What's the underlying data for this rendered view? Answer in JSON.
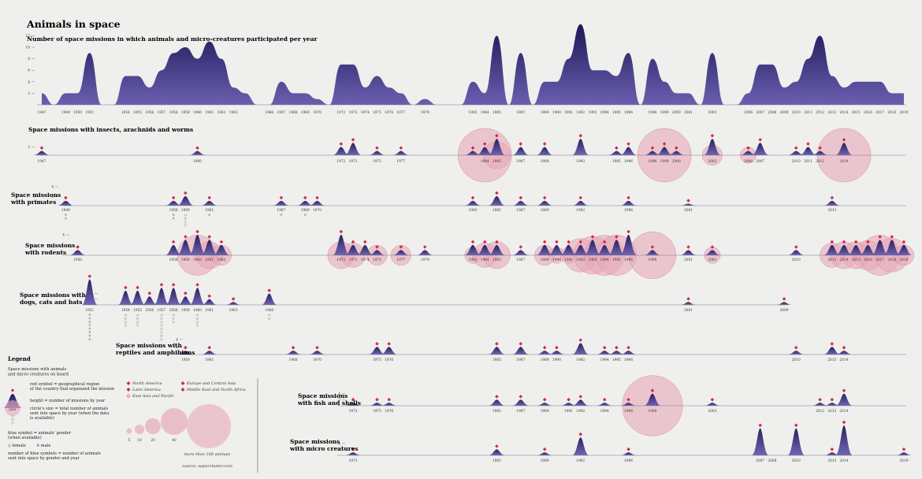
{
  "title": "Animals in space",
  "subtitle": "Number of space missions in which animals and micro-creatures participated per year",
  "colors": {
    "area": "#2b2466",
    "area_light": "#4a3f8e",
    "bubble": "#e8a9b8",
    "marker": "#d6264b",
    "gender": "#6d68a8",
    "background": "#efefed"
  },
  "chart_data": [
    {
      "type": "area",
      "name": "main",
      "title": "Number of space missions in which animals and micro-creatures participated per year",
      "y_ticks": [
        "2",
        "4",
        "6",
        "8",
        "10",
        "12"
      ],
      "ylim": [
        0,
        13
      ],
      "x": [
        1947,
        1948,
        1949,
        1950,
        1951,
        1952,
        1953,
        1954,
        1955,
        1956,
        1957,
        1958,
        1959,
        1960,
        1961,
        1962,
        1963,
        1964,
        1965,
        1966,
        1967,
        1968,
        1969,
        1970,
        1971,
        1972,
        1973,
        1974,
        1975,
        1976,
        1977,
        1978,
        1979,
        1980,
        1981,
        1982,
        1983,
        1984,
        1985,
        1986,
        1987,
        1988,
        1989,
        1990,
        1991,
        1992,
        1993,
        1994,
        1995,
        1996,
        1997,
        1998,
        1999,
        2000,
        2001,
        2002,
        2003,
        2004,
        2005,
        2006,
        2007,
        2008,
        2009,
        2010,
        2011,
        2012,
        2013,
        2014,
        2015,
        2016,
        2017,
        2018,
        2019
      ],
      "values": [
        2,
        0,
        2,
        2,
        9,
        0,
        0,
        5,
        5,
        3,
        6,
        9,
        10,
        8,
        11,
        8,
        3,
        2,
        0,
        0,
        4,
        2,
        2,
        1,
        0,
        7,
        7,
        3,
        5,
        3,
        2,
        0,
        1,
        0,
        0,
        0,
        4,
        2,
        12,
        0,
        9,
        0,
        4,
        4,
        8,
        14,
        6,
        6,
        5,
        9,
        0,
        8,
        4,
        2,
        2,
        0,
        9,
        0,
        0,
        2,
        7,
        7,
        3,
        4,
        8,
        12,
        5,
        3,
        4,
        4,
        4,
        2,
        2
      ],
      "labels": [
        "1947",
        "1949",
        "1950",
        "1951",
        "1954",
        "1955",
        "1956",
        "1957",
        "1958",
        "1959",
        "1960",
        "1961",
        "1962",
        "1963",
        "1966",
        "1967",
        "1968",
        "1969",
        "1970",
        "1972",
        "1973",
        "1974",
        "1975",
        "1976",
        "1977",
        "1979",
        "1983",
        "1984",
        "1985",
        "1987",
        "1989",
        "1990",
        "1991",
        "1992",
        "1993",
        "1994",
        "1995",
        "1996",
        "1998",
        "1999",
        "2000",
        "2001",
        "2003",
        "2006",
        "2007",
        "2008",
        "2009",
        "2010",
        "2011",
        "2012",
        "2013",
        "2014",
        "2015",
        "2016",
        "2017",
        "2018",
        "2019"
      ]
    },
    {
      "type": "area",
      "name": "insects",
      "title": "Space missions with insects, arachnids and worms",
      "y_ticks": [
        "2"
      ],
      "peaks": [
        [
          1947,
          1
        ],
        [
          1960,
          1
        ],
        [
          1972,
          2
        ],
        [
          1973,
          3
        ],
        [
          1975,
          1
        ],
        [
          1977,
          1
        ],
        [
          1983,
          1
        ],
        [
          1984,
          2
        ],
        [
          1985,
          4
        ],
        [
          1987,
          2
        ],
        [
          1989,
          2
        ],
        [
          1992,
          4
        ],
        [
          1995,
          1
        ],
        [
          1996,
          2
        ],
        [
          1998,
          1
        ],
        [
          1999,
          2
        ],
        [
          2000,
          1
        ],
        [
          2003,
          4
        ],
        [
          2006,
          1
        ],
        [
          2007,
          3
        ],
        [
          2010,
          1
        ],
        [
          2011,
          2
        ],
        [
          2012,
          1
        ],
        [
          2014,
          3
        ]
      ],
      "bubbles": [
        [
          1984,
          40
        ],
        [
          1985,
          20
        ],
        [
          1999,
          40
        ],
        [
          2003,
          15
        ],
        [
          2006,
          12
        ],
        [
          2014,
          40
        ]
      ],
      "labels": [
        "1947",
        "1960",
        "1972",
        "1973",
        "1975",
        "1977",
        "1984",
        "1985",
        "1987",
        "1989",
        "1992",
        "1995",
        "1996",
        "1998",
        "1999",
        "2000",
        "2003",
        "2006",
        "2007",
        "2010",
        "2011",
        "2012",
        "2014"
      ]
    },
    {
      "type": "area",
      "name": "primates",
      "title": "Space missions\nwith primates",
      "y_ticks": [
        "2",
        "4"
      ],
      "peaks": [
        [
          1949,
          1
        ],
        [
          1958,
          1
        ],
        [
          1959,
          2
        ],
        [
          1961,
          1
        ],
        [
          1967,
          1
        ],
        [
          1969,
          1
        ],
        [
          1970,
          1
        ],
        [
          1983,
          1
        ],
        [
          1985,
          2
        ],
        [
          1987,
          1
        ],
        [
          1989,
          1
        ],
        [
          1992,
          1
        ],
        [
          1996,
          1
        ],
        [
          2001,
          0.4
        ],
        [
          2013,
          1
        ]
      ],
      "labels": [
        "1949",
        "1958",
        "1959",
        "1961",
        "1967",
        "1969",
        "1970",
        "1983",
        "1985",
        "1987",
        "1989",
        "1992",
        "1996",
        "2001",
        "2013"
      ]
    },
    {
      "type": "area",
      "name": "rodents",
      "title": "Space missions\nwith rodents",
      "y_ticks": [
        "4"
      ],
      "peaks": [
        [
          1950,
          1
        ],
        [
          1958,
          2
        ],
        [
          1959,
          3
        ],
        [
          1960,
          4
        ],
        [
          1961,
          3
        ],
        [
          1962,
          2
        ],
        [
          1972,
          4
        ],
        [
          1973,
          2
        ],
        [
          1974,
          2
        ],
        [
          1975,
          1
        ],
        [
          1977,
          1
        ],
        [
          1979,
          1
        ],
        [
          1983,
          2
        ],
        [
          1984,
          2
        ],
        [
          1985,
          2
        ],
        [
          1987,
          1
        ],
        [
          1989,
          2
        ],
        [
          1990,
          2
        ],
        [
          1991,
          2
        ],
        [
          1992,
          2
        ],
        [
          1993,
          3
        ],
        [
          1994,
          2
        ],
        [
          1995,
          3
        ],
        [
          1996,
          4
        ],
        [
          1998,
          1
        ],
        [
          2001,
          1
        ],
        [
          2003,
          1
        ],
        [
          2010,
          1
        ],
        [
          2013,
          2
        ],
        [
          2014,
          2
        ],
        [
          2015,
          2
        ],
        [
          2016,
          2
        ],
        [
          2017,
          3
        ],
        [
          2018,
          3
        ],
        [
          2019,
          2
        ]
      ],
      "bubbles": [
        [
          1960,
          30
        ],
        [
          1961,
          20
        ],
        [
          1962,
          15
        ],
        [
          1972,
          20
        ],
        [
          1973,
          18
        ],
        [
          1975,
          15
        ],
        [
          1977,
          15
        ],
        [
          1983,
          12
        ],
        [
          1984,
          18
        ],
        [
          1985,
          20
        ],
        [
          1989,
          15
        ],
        [
          1990,
          12
        ],
        [
          1991,
          12
        ],
        [
          1992,
          25
        ],
        [
          1993,
          28
        ],
        [
          1994,
          30
        ],
        [
          1995,
          30
        ],
        [
          1998,
          35
        ],
        [
          2003,
          12
        ],
        [
          2013,
          18
        ],
        [
          2014,
          20
        ],
        [
          2015,
          20
        ],
        [
          2016,
          22
        ],
        [
          2017,
          30
        ],
        [
          2018,
          25
        ],
        [
          2019,
          15
        ]
      ],
      "labels": [
        "1950",
        "1958",
        "1959",
        "1960",
        "1961",
        "1962",
        "1972",
        "1973",
        "1974",
        "1975",
        "1977",
        "1979",
        "1983",
        "1984",
        "1985",
        "1987",
        "1989",
        "1990",
        "1991",
        "1992",
        "1993",
        "1994",
        "1995",
        "1996",
        "1998",
        "2001",
        "2003",
        "2010",
        "2013",
        "2014",
        "2015",
        "2016",
        "2017",
        "2018",
        "2019"
      ]
    },
    {
      "type": "area",
      "name": "dogs",
      "title": "Space missions with\ndogs, cats and bats",
      "y_ticks": [
        "2",
        "4"
      ],
      "peaks": [
        [
          1951,
          9
        ],
        [
          1954,
          5
        ],
        [
          1955,
          5
        ],
        [
          1956,
          3
        ],
        [
          1957,
          6
        ],
        [
          1958,
          6
        ],
        [
          1959,
          3
        ],
        [
          1960,
          6
        ],
        [
          1961,
          2
        ],
        [
          1963,
          1
        ],
        [
          1966,
          4
        ],
        [
          2001,
          1
        ],
        [
          2009,
          1
        ]
      ],
      "labels": [
        "1951",
        "1954",
        "1955",
        "1956",
        "1957",
        "1958",
        "1959",
        "1960",
        "1961",
        "1963",
        "1966",
        "2001",
        "2009"
      ]
    },
    {
      "type": "area",
      "name": "reptiles",
      "title": "Space missions with\nreptiles and amphibians",
      "y_ticks": [
        "2",
        "4"
      ],
      "peaks": [
        [
          1959,
          1
        ],
        [
          1961,
          1
        ],
        [
          1968,
          1
        ],
        [
          1970,
          1
        ],
        [
          1975,
          2
        ],
        [
          1976,
          2
        ],
        [
          1985,
          2
        ],
        [
          1987,
          2
        ],
        [
          1989,
          1
        ],
        [
          1990,
          1
        ],
        [
          1992,
          3
        ],
        [
          1994,
          1
        ],
        [
          1995,
          1
        ],
        [
          1996,
          1
        ],
        [
          2010,
          1
        ],
        [
          2013,
          2
        ],
        [
          2014,
          1
        ]
      ],
      "labels": [
        "1959",
        "1961",
        "1968",
        "1970",
        "1975",
        "1976",
        "1985",
        "1987",
        "1989",
        "1990",
        "1992",
        "1994",
        "1995",
        "1996",
        "2010",
        "2013",
        "2014"
      ]
    },
    {
      "type": "area",
      "name": "fish",
      "title": "Space missions\nwith fish and shells",
      "y_ticks": [
        "2",
        "4"
      ],
      "peaks": [
        [
          1973,
          1
        ],
        [
          1975,
          1
        ],
        [
          1976,
          1
        ],
        [
          1985,
          2
        ],
        [
          1987,
          2
        ],
        [
          1989,
          1
        ],
        [
          1991,
          1
        ],
        [
          1992,
          2
        ],
        [
          1994,
          1
        ],
        [
          1996,
          1
        ],
        [
          1998,
          4
        ],
        [
          2003,
          1
        ],
        [
          2012,
          1
        ],
        [
          2013,
          1
        ],
        [
          2014,
          4
        ]
      ],
      "bubbles": [
        [
          1998,
          45
        ]
      ],
      "labels": [
        "1973",
        "1975",
        "1976",
        "1985",
        "1987",
        "1989",
        "1991",
        "1992",
        "1994",
        "1996",
        "1998",
        "2003",
        "2012",
        "2013",
        "2014"
      ]
    },
    {
      "type": "area",
      "name": "micro",
      "title": "Space missions\nwith micro creatures",
      "y_ticks": [
        "2",
        "4"
      ],
      "peaks": [
        [
          1973,
          1
        ],
        [
          1985,
          2
        ],
        [
          1989,
          1
        ],
        [
          1992,
          6
        ],
        [
          1996,
          1
        ],
        [
          2007,
          9
        ],
        [
          2010,
          9
        ],
        [
          2013,
          1
        ],
        [
          2014,
          10
        ],
        [
          2019,
          1
        ]
      ],
      "labels": [
        "1973",
        "1985",
        "1989",
        "1992",
        "1996",
        "2007",
        "2008",
        "2010",
        "2013",
        "2014",
        "2019"
      ]
    }
  ],
  "legend": {
    "heading": "Legend",
    "subheading": "Space missions with animals\nand micro creatures on board",
    "year_label": "year",
    "red_symbol": "red symbol = geographical region\nof the country that organized the mission",
    "height": "height = number of missions by year",
    "circle_size": "circle's size = total number of animals\nsent into space by year (when the data\nis available)",
    "blue_symbol": "blue symbol = animals' gender\n(when available)",
    "female": "◇ female",
    "male": "× male",
    "count": "number of blue symbols = number of animals\nsent into space by gender and year",
    "regions": [
      "North America",
      "Latin America",
      "East Asia and Pacific",
      "Europe and Central Asia",
      "Middle East and North Africa"
    ],
    "sizes": [
      "5",
      "10",
      "20",
      "40"
    ],
    "more_than": "more than 100 animals",
    "source": "source: supercluster.com"
  }
}
